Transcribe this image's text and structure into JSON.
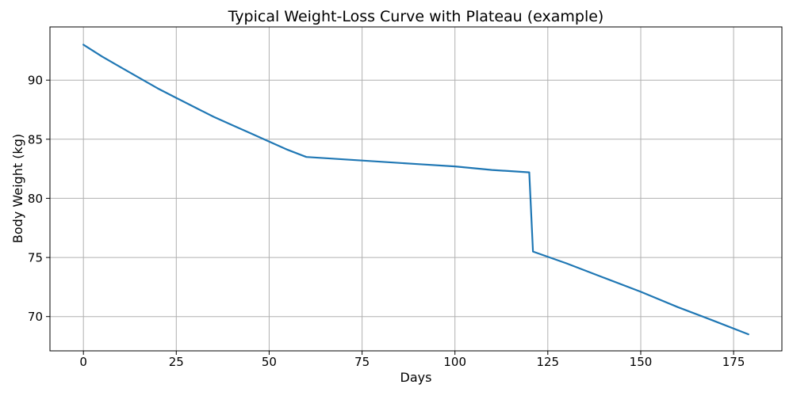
{
  "chart_data": {
    "type": "line",
    "title": "Typical Weight-Loss Curve with Plateau (example)",
    "xlabel": "Days",
    "ylabel": "Body Weight (kg)",
    "xlim": [
      -9,
      188
    ],
    "ylim": [
      67.1,
      94.5
    ],
    "xticks": [
      0,
      25,
      50,
      75,
      100,
      125,
      150,
      175
    ],
    "yticks": [
      70,
      75,
      80,
      85,
      90
    ],
    "grid": true,
    "legend": "none",
    "colors": {
      "line": "#1f77b4",
      "grid": "#b0b0b0",
      "spine": "#000000",
      "text": "#000000",
      "background": "#ffffff"
    },
    "series": [
      {
        "name": "body-weight",
        "x": [
          0,
          5,
          10,
          15,
          20,
          25,
          30,
          35,
          40,
          45,
          50,
          55,
          60,
          70,
          80,
          90,
          100,
          110,
          120,
          121,
          130,
          140,
          150,
          160,
          170,
          179
        ],
        "y": [
          93.0,
          92.0,
          91.1,
          90.2,
          89.3,
          88.5,
          87.7,
          86.9,
          86.2,
          85.5,
          84.8,
          84.1,
          83.5,
          83.3,
          83.1,
          82.9,
          82.7,
          82.4,
          82.2,
          75.5,
          74.5,
          73.3,
          72.1,
          70.8,
          69.6,
          68.5
        ]
      }
    ],
    "notable_points": {
      "start": {
        "day": 0,
        "weight_kg": 93.0
      },
      "plateau_start": {
        "day": 60,
        "weight_kg": 83.5
      },
      "plateau_end": {
        "day": 120,
        "weight_kg": 82.2
      },
      "drop_bottom": {
        "day": 121,
        "weight_kg": 75.5
      },
      "end": {
        "day": 179,
        "weight_kg": 68.5
      }
    }
  }
}
